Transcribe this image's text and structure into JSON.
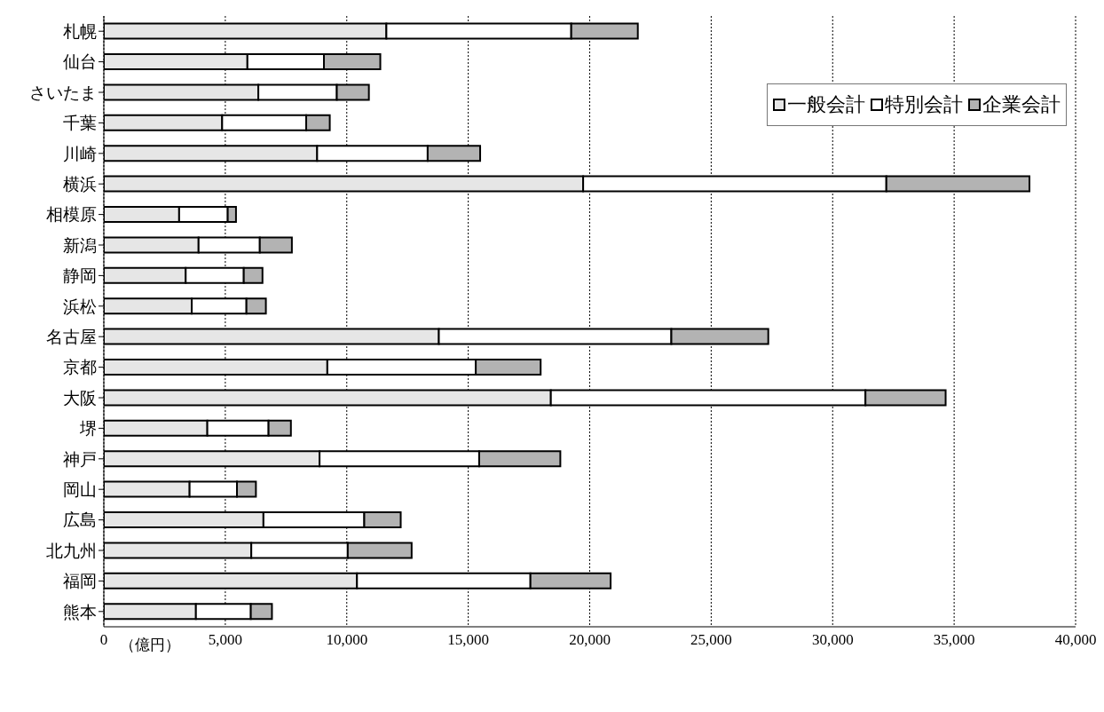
{
  "chart_data": {
    "type": "bar",
    "orientation": "horizontal",
    "stacked": true,
    "xlabel": "（億円）",
    "categories": [
      "札幌",
      "仙台",
      "さいたま",
      "千葉",
      "川崎",
      "横浜",
      "相模原",
      "新潟",
      "静岡",
      "浜松",
      "名古屋",
      "京都",
      "大阪",
      "堺",
      "神戸",
      "岡山",
      "広島",
      "北九州",
      "福岡",
      "熊本"
    ],
    "series": [
      {
        "name": "一般会計",
        "color": "#e6e6e6",
        "values": [
          11630,
          5910,
          6360,
          4870,
          8780,
          19730,
          3100,
          3900,
          3370,
          3620,
          13790,
          9200,
          18400,
          4260,
          8880,
          3530,
          6570,
          6070,
          10420,
          3790
        ]
      },
      {
        "name": "特別会計",
        "color": "#ffffff",
        "values": [
          7610,
          3150,
          3230,
          3460,
          4550,
          12480,
          2000,
          2520,
          2390,
          2250,
          9570,
          6110,
          12950,
          2520,
          6570,
          1950,
          4150,
          3970,
          7140,
          2260
        ]
      },
      {
        "name": "企業会計",
        "color": "#b3b3b3",
        "values": [
          2740,
          2320,
          1320,
          970,
          2160,
          5890,
          340,
          1320,
          770,
          800,
          3990,
          2670,
          3300,
          920,
          3340,
          780,
          1500,
          2630,
          3300,
          870
        ]
      }
    ],
    "xlim": [
      0,
      40000
    ],
    "xticks": [
      0,
      {
        "value": 5000,
        "label": "5,000"
      },
      {
        "value": 10000,
        "label": "10,000"
      },
      {
        "value": 15000,
        "label": "15,000"
      },
      {
        "value": 20000,
        "label": "20,000"
      },
      {
        "value": 25000,
        "label": "25,000"
      },
      {
        "value": 30000,
        "label": "30,000"
      },
      {
        "value": 35000,
        "label": "35,000"
      },
      {
        "value": 40000,
        "label": "40,000"
      }
    ],
    "grid": "x",
    "legend": "top right"
  }
}
